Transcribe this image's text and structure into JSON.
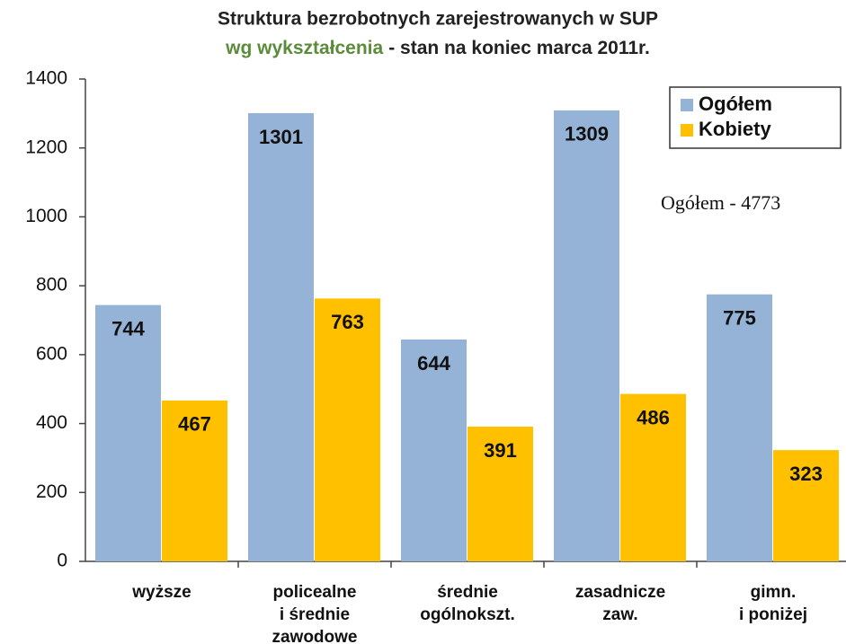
{
  "chart_data": {
    "type": "bar",
    "title": "Struktura bezrobotnych zarejestrowanych  w SUP",
    "subtitle_highlight": "wg wykształcenia",
    "subtitle": "- stan na koniec marca 2011r.",
    "annotation": "Ogółem - 4773",
    "categories": [
      "wyższe",
      "policealne\ni średnie\nzawodowe",
      "średnie\nogólnokszt.",
      "zasadnicze\nzaw.",
      "gimn.\ni poniżej"
    ],
    "series": [
      {
        "name": "Ogółem",
        "color": "#95b3d7",
        "values": [
          744,
          1301,
          644,
          1309,
          775
        ]
      },
      {
        "name": "Kobiety",
        "color": "#ffc000",
        "values": [
          467,
          763,
          391,
          486,
          323
        ]
      }
    ],
    "ylim": [
      0,
      1400
    ],
    "yticks": [
      0,
      200,
      400,
      600,
      800,
      1000,
      1200,
      1400
    ],
    "grid": false,
    "legend": "upper right"
  }
}
